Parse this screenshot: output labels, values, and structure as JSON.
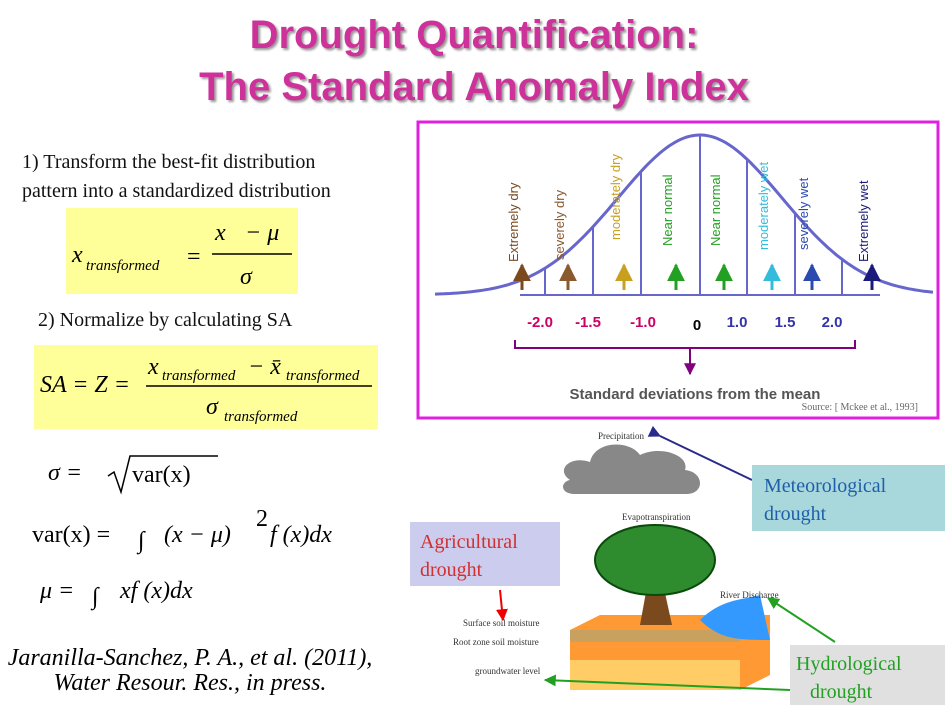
{
  "title": [
    "Drought Quantification:",
    "The Standard Anomaly Index"
  ],
  "steps": {
    "step1": [
      "1) Transform the best-fit distribution",
      "pattern into a standardized distribution"
    ],
    "step2": "2) Normalize by calculating SA"
  },
  "formulas": {
    "f1": [
      "x",
      "transformed",
      "=",
      "x",
      "− μ",
      "σ"
    ],
    "f2": [
      "SA = Z =",
      "x",
      "transformed",
      "− x̄",
      "transformed",
      "σ",
      "transformed"
    ],
    "f3": [
      "σ =",
      "var(x)"
    ],
    "f4": [
      "var(x) =",
      "∫",
      "(x − μ)",
      "2",
      "f (x)dx"
    ],
    "f5": [
      "μ =",
      "∫",
      "xf (x)dx"
    ]
  },
  "citation": [
    "Jaranilla-Sanchez, P. A., et al. (2011),",
    "Water Resour. Res., in press."
  ],
  "bell": {
    "categories": [
      "Extremely dry",
      "severely dry",
      "moderately dry",
      "Near normal",
      "Near normal",
      "moderately wet",
      "severely wet",
      "Extremely wet"
    ],
    "ticks": [
      "-2.0",
      "-1.5",
      "-1.0",
      "0",
      "1.0",
      "1.5",
      "2.0"
    ],
    "axis_label": "Standard deviations from the mean",
    "source": "Source: [ Mckee et al., 1993]"
  },
  "cycle": {
    "labels": [
      "Precipitation",
      "Evapotranspiration",
      "River Discharge",
      "Surface soil moisture",
      "Root zone soil moisture",
      "groundwater level"
    ],
    "meteorological": [
      "Meteorological",
      "drought"
    ],
    "agricultural": [
      "Agricultural",
      "drought"
    ],
    "hydrological": [
      "Hydrological",
      "drought"
    ]
  }
}
